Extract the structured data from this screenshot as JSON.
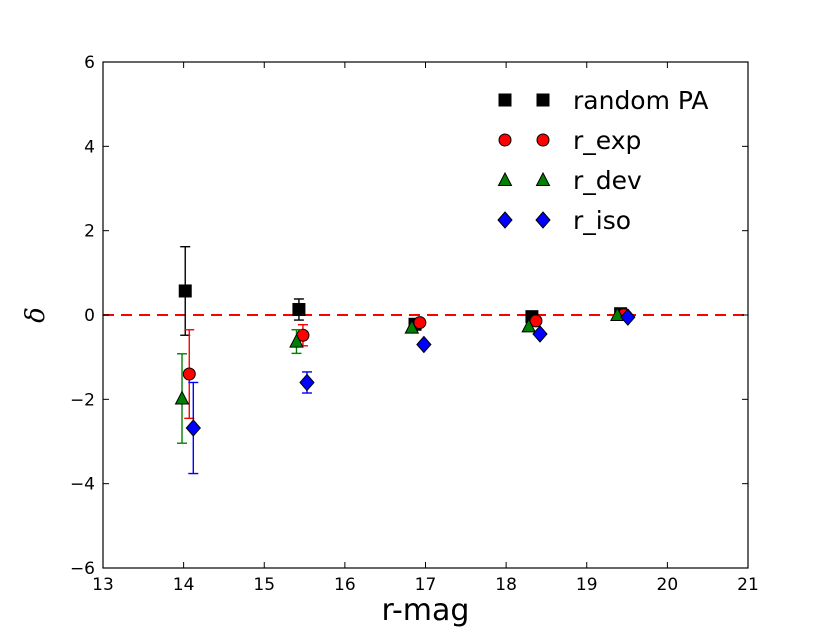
{
  "chart_data": {
    "type": "scatter",
    "title": "",
    "xlabel": "r-mag",
    "ylabel": "δ",
    "xlim": [
      13,
      21
    ],
    "ylim": [
      -6,
      6
    ],
    "x_ticks": [
      "13",
      "14",
      "15",
      "16",
      "17",
      "18",
      "19",
      "20",
      "21"
    ],
    "y_ticks": [
      "−6",
      "−4",
      "−2",
      "0",
      "2",
      "4",
      "6"
    ],
    "x_tick_values": [
      13,
      14,
      15,
      16,
      17,
      18,
      19,
      20,
      21
    ],
    "y_tick_values": [
      -6,
      -4,
      -2,
      0,
      2,
      4,
      6
    ],
    "reference_line": {
      "y": 0,
      "style": "dashed",
      "color": "#ff0000"
    },
    "legend_position": "top-right",
    "grid": false,
    "series": [
      {
        "name": "random PA",
        "marker": "square",
        "color": "#000000",
        "points": [
          {
            "x": 14.02,
            "y": 0.57,
            "err": 1.05
          },
          {
            "x": 15.43,
            "y": 0.13,
            "err": 0.25
          },
          {
            "x": 16.87,
            "y": -0.22,
            "err": 0.0
          },
          {
            "x": 18.32,
            "y": -0.04,
            "err": 0.0
          },
          {
            "x": 19.42,
            "y": 0.03,
            "err": 0.0
          }
        ]
      },
      {
        "name": "r_exp",
        "marker": "circle",
        "color": "#ff0000",
        "points": [
          {
            "x": 14.07,
            "y": -1.4,
            "err": 1.05
          },
          {
            "x": 15.48,
            "y": -0.48,
            "err": 0.25
          },
          {
            "x": 16.93,
            "y": -0.18,
            "err": 0.0
          },
          {
            "x": 18.37,
            "y": -0.14,
            "err": 0.0
          },
          {
            "x": 19.46,
            "y": 0.01,
            "err": 0.0
          }
        ]
      },
      {
        "name": "r_dev",
        "marker": "triangle",
        "color": "#008000",
        "points": [
          {
            "x": 13.98,
            "y": -1.98,
            "err": 1.06
          },
          {
            "x": 15.4,
            "y": -0.63,
            "err": 0.28
          },
          {
            "x": 16.83,
            "y": -0.3,
            "err": 0.0
          },
          {
            "x": 18.28,
            "y": -0.27,
            "err": 0.0
          },
          {
            "x": 19.38,
            "y": 0.0,
            "err": 0.0
          }
        ]
      },
      {
        "name": "r_iso",
        "marker": "diamond",
        "color": "#0000ff",
        "points": [
          {
            "x": 14.12,
            "y": -2.68,
            "err": 1.08
          },
          {
            "x": 15.53,
            "y": -1.6,
            "err": 0.25
          },
          {
            "x": 16.98,
            "y": -0.7,
            "err": 0.0
          },
          {
            "x": 18.42,
            "y": -0.45,
            "err": 0.0
          },
          {
            "x": 19.51,
            "y": -0.05,
            "err": 0.0
          }
        ]
      }
    ]
  }
}
